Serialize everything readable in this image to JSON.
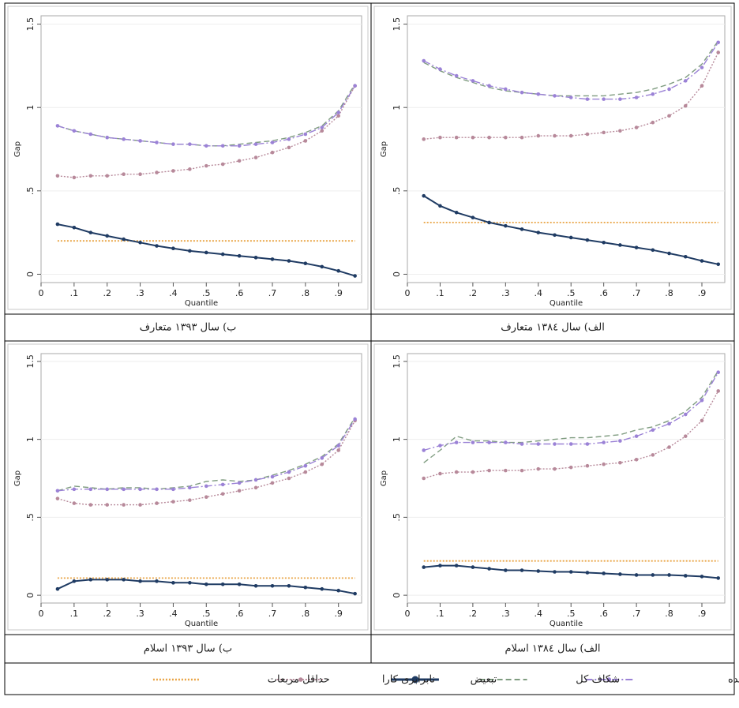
{
  "chart_data": [
    {
      "type": "line",
      "caption": "ب) سال ۱۳۹۳ متعارف",
      "xlabel": "Quantile",
      "ylabel": "Gap",
      "x": [
        0.05,
        0.1,
        0.15,
        0.2,
        0.25,
        0.3,
        0.35,
        0.4,
        0.45,
        0.5,
        0.55,
        0.6,
        0.65,
        0.7,
        0.75,
        0.8,
        0.85,
        0.9,
        0.95
      ],
      "xlim": [
        0,
        0.97
      ],
      "ylim": [
        -0.05,
        1.55
      ],
      "xticks": [
        0,
        {
          "value": 0.1,
          "label": ".1"
        },
        {
          "value": 0.2,
          "label": ".2"
        },
        {
          "value": 0.3,
          "label": ".3"
        },
        {
          "value": 0.4,
          "label": ".4"
        },
        {
          "value": 0.5,
          "label": ".5"
        },
        {
          "value": 0.6,
          "label": ".6"
        },
        {
          "value": 0.7,
          "label": ".7"
        },
        {
          "value": 0.8,
          "label": ".8"
        },
        {
          "value": 0.9,
          "label": ".9"
        }
      ],
      "yticks": [
        0,
        {
          "value": 0.5,
          "label": ".5"
        },
        1,
        1.5
      ],
      "series": [
        {
          "values": [
            0.89,
            0.86,
            0.84,
            0.82,
            0.81,
            0.8,
            0.79,
            0.78,
            0.78,
            0.77,
            0.77,
            0.77,
            0.78,
            0.79,
            0.81,
            0.84,
            0.88,
            0.97,
            1.13
          ]
        },
        {
          "values": [
            0.89,
            0.86,
            0.84,
            0.82,
            0.81,
            0.8,
            0.79,
            0.78,
            0.78,
            0.77,
            0.77,
            0.78,
            0.79,
            0.8,
            0.82,
            0.85,
            0.89,
            0.98,
            1.14
          ]
        },
        {
          "values": [
            0.3,
            0.28,
            0.25,
            0.23,
            0.21,
            0.19,
            0.17,
            0.155,
            0.14,
            0.13,
            0.12,
            0.11,
            0.1,
            0.09,
            0.08,
            0.065,
            0.045,
            0.02,
            -0.01
          ]
        },
        {
          "values": [
            0.59,
            0.58,
            0.59,
            0.59,
            0.6,
            0.6,
            0.61,
            0.62,
            0.63,
            0.65,
            0.66,
            0.68,
            0.7,
            0.73,
            0.76,
            0.8,
            0.86,
            0.95,
            1.13
          ]
        },
        {
          "values": [
            0.2,
            0.2,
            0.2,
            0.2,
            0.2,
            0.2,
            0.2,
            0.2,
            0.2,
            0.2,
            0.2,
            0.2,
            0.2,
            0.2,
            0.2,
            0.2,
            0.2,
            0.2,
            0.2
          ]
        }
      ]
    },
    {
      "type": "line",
      "caption": "الف) سال ۱۳۸٤ متعارف",
      "xlabel": "Quantile",
      "ylabel": "Gap",
      "x": [
        0.05,
        0.1,
        0.15,
        0.2,
        0.25,
        0.3,
        0.35,
        0.4,
        0.45,
        0.5,
        0.55,
        0.6,
        0.65,
        0.7,
        0.75,
        0.8,
        0.85,
        0.9,
        0.95
      ],
      "xlim": [
        0,
        0.97
      ],
      "ylim": [
        -0.05,
        1.55
      ],
      "xticks": [
        0,
        {
          "value": 0.1,
          "label": ".1"
        },
        {
          "value": 0.2,
          "label": ".2"
        },
        {
          "value": 0.3,
          "label": ".3"
        },
        {
          "value": 0.4,
          "label": ".4"
        },
        {
          "value": 0.5,
          "label": ".5"
        },
        {
          "value": 0.6,
          "label": ".6"
        },
        {
          "value": 0.7,
          "label": ".7"
        },
        {
          "value": 0.8,
          "label": ".8"
        },
        {
          "value": 0.9,
          "label": ".9"
        }
      ],
      "yticks": [
        0,
        {
          "value": 0.5,
          "label": ".5"
        },
        1,
        1.5
      ],
      "series": [
        {
          "values": [
            1.28,
            1.23,
            1.19,
            1.16,
            1.13,
            1.11,
            1.09,
            1.08,
            1.07,
            1.06,
            1.05,
            1.05,
            1.05,
            1.06,
            1.08,
            1.11,
            1.16,
            1.24,
            1.39
          ]
        },
        {
          "values": [
            1.27,
            1.22,
            1.18,
            1.15,
            1.12,
            1.1,
            1.09,
            1.08,
            1.07,
            1.07,
            1.07,
            1.07,
            1.08,
            1.09,
            1.11,
            1.14,
            1.18,
            1.26,
            1.4
          ]
        },
        {
          "values": [
            0.47,
            0.41,
            0.37,
            0.34,
            0.31,
            0.29,
            0.27,
            0.25,
            0.235,
            0.22,
            0.205,
            0.19,
            0.175,
            0.16,
            0.145,
            0.125,
            0.105,
            0.08,
            0.06
          ]
        },
        {
          "values": [
            0.81,
            0.82,
            0.82,
            0.82,
            0.82,
            0.82,
            0.82,
            0.83,
            0.83,
            0.83,
            0.84,
            0.85,
            0.86,
            0.88,
            0.91,
            0.95,
            1.01,
            1.13,
            1.33
          ]
        },
        {
          "values": [
            0.31,
            0.31,
            0.31,
            0.31,
            0.31,
            0.31,
            0.31,
            0.31,
            0.31,
            0.31,
            0.31,
            0.31,
            0.31,
            0.31,
            0.31,
            0.31,
            0.31,
            0.31,
            0.31
          ]
        }
      ]
    },
    {
      "type": "line",
      "caption": "ب) سال ۱۳۹۳ اسلام",
      "xlabel": "Quantile",
      "ylabel": "Gap",
      "x": [
        0.05,
        0.1,
        0.15,
        0.2,
        0.25,
        0.3,
        0.35,
        0.4,
        0.45,
        0.5,
        0.55,
        0.6,
        0.65,
        0.7,
        0.75,
        0.8,
        0.85,
        0.9,
        0.95
      ],
      "xlim": [
        0,
        0.97
      ],
      "ylim": [
        -0.05,
        1.55
      ],
      "xticks": [
        0,
        {
          "value": 0.1,
          "label": ".1"
        },
        {
          "value": 0.2,
          "label": ".2"
        },
        {
          "value": 0.3,
          "label": ".3"
        },
        {
          "value": 0.4,
          "label": ".4"
        },
        {
          "value": 0.5,
          "label": ".5"
        },
        {
          "value": 0.6,
          "label": ".6"
        },
        {
          "value": 0.7,
          "label": ".7"
        },
        {
          "value": 0.8,
          "label": ".8"
        },
        {
          "value": 0.9,
          "label": ".9"
        }
      ],
      "yticks": [
        0,
        {
          "value": 0.5,
          "label": ".5"
        },
        1,
        1.5
      ],
      "series": [
        {
          "values": [
            0.67,
            0.68,
            0.68,
            0.68,
            0.68,
            0.68,
            0.68,
            0.68,
            0.69,
            0.7,
            0.71,
            0.72,
            0.74,
            0.76,
            0.79,
            0.83,
            0.88,
            0.96,
            1.13
          ]
        },
        {
          "values": [
            0.67,
            0.7,
            0.69,
            0.68,
            0.69,
            0.69,
            0.68,
            0.69,
            0.7,
            0.73,
            0.74,
            0.73,
            0.74,
            0.77,
            0.8,
            0.84,
            0.89,
            0.97,
            1.14
          ]
        },
        {
          "values": [
            0.04,
            0.09,
            0.1,
            0.1,
            0.1,
            0.09,
            0.09,
            0.08,
            0.08,
            0.07,
            0.07,
            0.07,
            0.06,
            0.06,
            0.06,
            0.05,
            0.04,
            0.03,
            0.01
          ]
        },
        {
          "values": [
            0.62,
            0.59,
            0.58,
            0.58,
            0.58,
            0.58,
            0.59,
            0.6,
            0.61,
            0.63,
            0.65,
            0.67,
            0.69,
            0.72,
            0.75,
            0.79,
            0.84,
            0.93,
            1.12
          ]
        },
        {
          "values": [
            0.11,
            0.11,
            0.11,
            0.11,
            0.11,
            0.11,
            0.11,
            0.11,
            0.11,
            0.11,
            0.11,
            0.11,
            0.11,
            0.11,
            0.11,
            0.11,
            0.11,
            0.11,
            0.11
          ]
        }
      ]
    },
    {
      "type": "line",
      "caption": "الف) سال ۱۳۸٤ اسلام",
      "xlabel": "Quantile",
      "ylabel": "Gap",
      "x": [
        0.05,
        0.1,
        0.15,
        0.2,
        0.25,
        0.3,
        0.35,
        0.4,
        0.45,
        0.5,
        0.55,
        0.6,
        0.65,
        0.7,
        0.75,
        0.8,
        0.85,
        0.9,
        0.95
      ],
      "xlim": [
        0,
        0.97
      ],
      "ylim": [
        -0.05,
        1.55
      ],
      "xticks": [
        0,
        {
          "value": 0.1,
          "label": ".1"
        },
        {
          "value": 0.2,
          "label": ".2"
        },
        {
          "value": 0.3,
          "label": ".3"
        },
        {
          "value": 0.4,
          "label": ".4"
        },
        {
          "value": 0.5,
          "label": ".5"
        },
        {
          "value": 0.6,
          "label": ".6"
        },
        {
          "value": 0.7,
          "label": ".7"
        },
        {
          "value": 0.8,
          "label": ".8"
        },
        {
          "value": 0.9,
          "label": ".9"
        }
      ],
      "yticks": [
        0,
        {
          "value": 0.5,
          "label": ".5"
        },
        1,
        1.5
      ],
      "series": [
        {
          "values": [
            0.93,
            0.96,
            0.98,
            0.98,
            0.98,
            0.98,
            0.97,
            0.97,
            0.97,
            0.97,
            0.97,
            0.98,
            0.99,
            1.02,
            1.06,
            1.1,
            1.16,
            1.25,
            1.43
          ]
        },
        {
          "values": [
            0.85,
            0.93,
            1.02,
            0.99,
            0.99,
            0.98,
            0.98,
            0.99,
            1.0,
            1.01,
            1.01,
            1.02,
            1.03,
            1.06,
            1.08,
            1.12,
            1.18,
            1.27,
            1.44
          ]
        },
        {
          "values": [
            0.18,
            0.19,
            0.19,
            0.18,
            0.17,
            0.16,
            0.16,
            0.155,
            0.15,
            0.15,
            0.145,
            0.14,
            0.135,
            0.13,
            0.13,
            0.13,
            0.125,
            0.12,
            0.11
          ]
        },
        {
          "values": [
            0.75,
            0.78,
            0.79,
            0.79,
            0.8,
            0.8,
            0.8,
            0.81,
            0.81,
            0.82,
            0.83,
            0.84,
            0.85,
            0.87,
            0.9,
            0.95,
            1.02,
            1.12,
            1.31
          ]
        },
        {
          "values": [
            0.22,
            0.22,
            0.22,
            0.22,
            0.22,
            0.22,
            0.22,
            0.22,
            0.22,
            0.22,
            0.22,
            0.22,
            0.22,
            0.22,
            0.22,
            0.22,
            0.22,
            0.22,
            0.22
          ]
        }
      ]
    }
  ],
  "legend": [
    {
      "name": "شکاف پیش‌بینی شده",
      "color": "#9b82d6"
    },
    {
      "name": "شکاف کل",
      "color": "#7f9c80"
    },
    {
      "name": "تبعیض",
      "color": "#1f3b63"
    },
    {
      "name": "نابرابری کارا",
      "color": "#b7899a"
    },
    {
      "name": "حداقل مربعات",
      "color": "#e9a444"
    }
  ]
}
